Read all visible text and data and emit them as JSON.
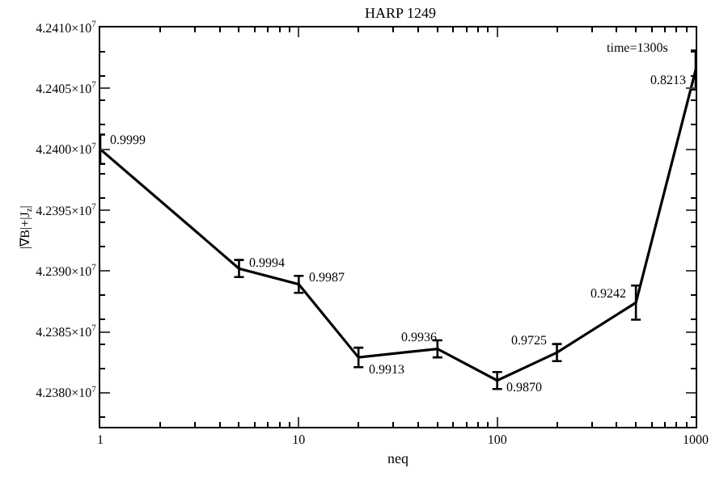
{
  "chart_data": {
    "type": "line",
    "title": "HARP 1249",
    "xlabel": "neq",
    "ylabel": "|∇B|+|J$_{z}$|",
    "x": [
      1,
      5,
      10,
      20,
      50,
      100,
      200,
      500,
      1000
    ],
    "series": [
      {
        "color": "#000000",
        "values": [
          42400000,
          42390200,
          42388900,
          42382900,
          42383600,
          42381000,
          42383300,
          42387400,
          42406500
        ],
        "errors": [
          1200,
          700,
          700,
          800,
          700,
          700,
          700,
          1400,
          1600
        ]
      }
    ],
    "log": "x",
    "xlim": [
      1,
      1000
    ],
    "xticks": [
      1,
      10,
      100,
      1000
    ],
    "ylim": [
      42377200,
      42410000
    ],
    "yticks": [
      {
        "value": 42380000,
        "label": "4.2380×10$^{7}$"
      },
      {
        "value": 42385000,
        "label": "4.2385×10$^{7}$"
      },
      {
        "value": 42390000,
        "label": "4.2390×10$^{7}$"
      },
      {
        "value": 42395000,
        "label": "4.2395×10$^{7}$"
      },
      {
        "value": 42400000,
        "label": "4.2400×10$^{7}$"
      },
      {
        "value": 42405000,
        "label": "4.2405×10$^{7}$"
      },
      {
        "value": 42410000,
        "label": "4.2410×10$^{7}$"
      }
    ],
    "marker": "none",
    "line_style": "solid",
    "annotations": [
      "time=1300s",
      {
        "text": "0.9999",
        "x": 1,
        "y": 42400000
      },
      {
        "text": "0.9994",
        "x": 5,
        "y": 42390200
      },
      {
        "text": "0.9987",
        "x": 10,
        "y": 42388900
      },
      {
        "text": "0.9913",
        "x": 20,
        "y": 42382900
      },
      {
        "text": "0.9936",
        "x": 50,
        "y": 42383600
      },
      {
        "text": "0.9870",
        "x": 100,
        "y": 42381000
      },
      {
        "text": "0.9725",
        "x": 200,
        "y": 42383300
      },
      {
        "text": "0.9242",
        "x": 500,
        "y": 42387400
      },
      {
        "text": "0.8213",
        "x": 1000,
        "y": 42406500
      }
    ]
  }
}
